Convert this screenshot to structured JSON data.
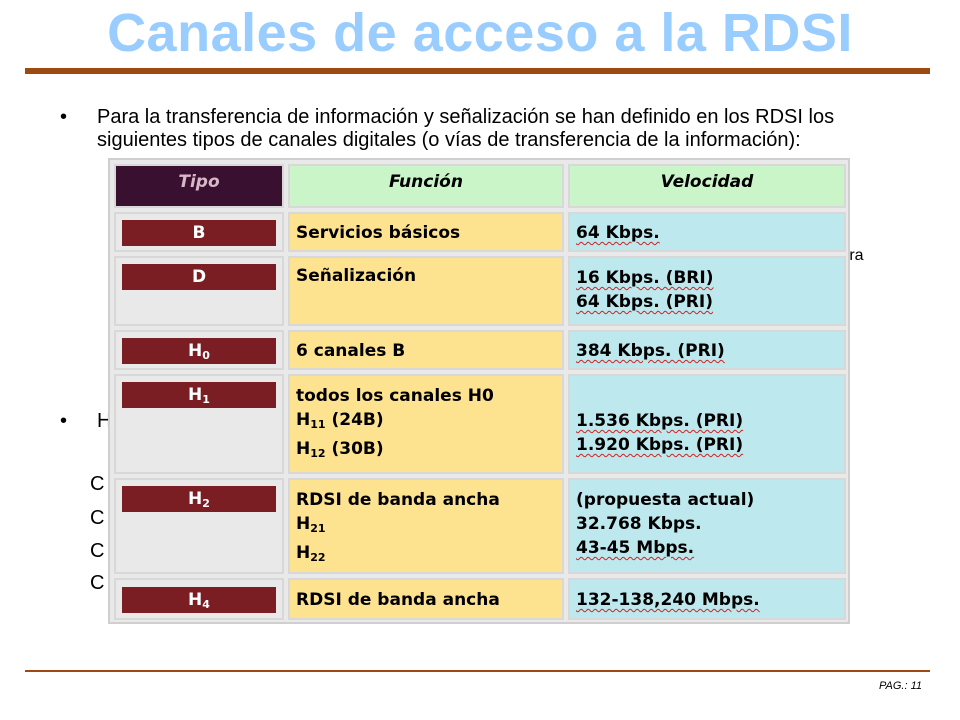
{
  "slide": {
    "title": "Canales de acceso a la RDSI",
    "bullet_1": "Para la transferencia de información y señalización se han definido en los RDSI los siguientes tipos de canales digitales (o vías de transferencia de la información):",
    "fragment_right": "ctura",
    "bullet_2_start": "H",
    "sub_lines": [
      "C",
      "C",
      "C",
      "C"
    ],
    "page_number": "PAG.: 11"
  },
  "table": {
    "headers": {
      "tipo": "Tipo",
      "funcion": "Función",
      "velocidad": "Velocidad"
    },
    "rows": [
      {
        "tipo": "B",
        "tipo_sub": "",
        "funcion": [
          "Servicios básicos"
        ],
        "velocidad": [
          "64 Kbps."
        ]
      },
      {
        "tipo": "D",
        "tipo_sub": "",
        "funcion": [
          "Señalización"
        ],
        "velocidad": [
          "16 Kbps. (BRI)",
          "64 Kbps. (PRI)"
        ]
      },
      {
        "tipo": "H",
        "tipo_sub": "0",
        "funcion": [
          "6 canales B"
        ],
        "velocidad": [
          "384 Kbps. (PRI)"
        ]
      },
      {
        "tipo": "H",
        "tipo_sub": "1",
        "funcion": [
          "todos los canales H0",
          "H",
          "H"
        ],
        "funcion_subs": [
          "",
          "11",
          "12"
        ],
        "funcion_rest": [
          "",
          " (24B)",
          " (30B)"
        ],
        "velocidad": [
          "",
          "1.536 Kbps. (PRI)",
          "1.920 Kbps. (PRI)"
        ]
      },
      {
        "tipo": "H",
        "tipo_sub": "2",
        "funcion": [
          "RDSI de banda ancha",
          "H",
          "H"
        ],
        "funcion_subs": [
          "",
          "21",
          "22"
        ],
        "velocidad": [
          "(propuesta actual)",
          "32.768 Kbps.",
          "43-45 Mbps."
        ]
      },
      {
        "tipo": "H",
        "tipo_sub": "4",
        "funcion": [
          "RDSI de banda ancha"
        ],
        "velocidad": [
          "132-138,240 Mbps."
        ]
      }
    ]
  },
  "colors": {
    "title": "#99ccff",
    "rule": "#9c4a12",
    "tipo_bar": "#7a1e24",
    "funcion_bg": "#fde290",
    "velocidad_bg": "#bde9ee",
    "header_bg": "#c9f5c9"
  }
}
